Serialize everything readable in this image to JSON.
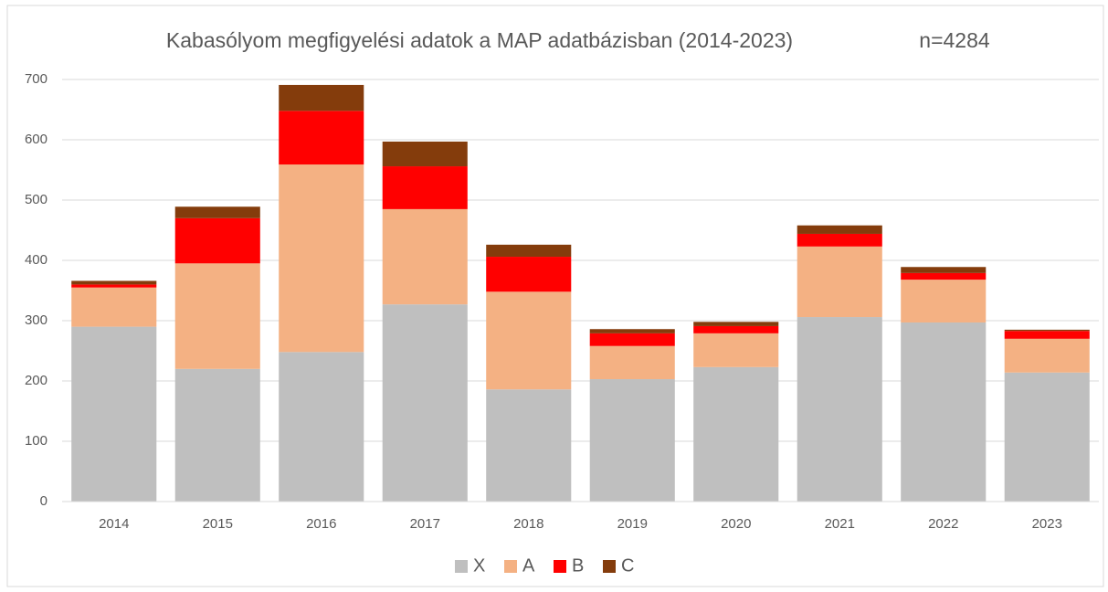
{
  "chart_data": {
    "type": "stacked_bar",
    "title": "Kabasólyom megfigyelési adatok a MAP adatbázisban (2014-2023)",
    "annotation": "n=4284",
    "categories": [
      "2014",
      "2015",
      "2016",
      "2017",
      "2018",
      "2019",
      "2020",
      "2021",
      "2022",
      "2023"
    ],
    "series": [
      {
        "name": "X",
        "color": "#bfbfbf",
        "values": [
          290,
          220,
          248,
          327,
          186,
          203,
          223,
          306,
          297,
          214
        ]
      },
      {
        "name": "A",
        "color": "#f4b183",
        "values": [
          65,
          175,
          311,
          158,
          162,
          55,
          56,
          117,
          71,
          56
        ]
      },
      {
        "name": "B",
        "color": "#ff0000",
        "values": [
          5,
          75,
          89,
          71,
          58,
          21,
          12,
          21,
          11,
          13
        ]
      },
      {
        "name": "C",
        "color": "#843c0c",
        "values": [
          6,
          19,
          43,
          41,
          20,
          7,
          7,
          14,
          10,
          2
        ]
      }
    ],
    "ylim": [
      0,
      700
    ],
    "yticks": [
      0,
      100,
      200,
      300,
      400,
      500,
      600,
      700
    ],
    "grid": true,
    "legend": "bottom"
  }
}
